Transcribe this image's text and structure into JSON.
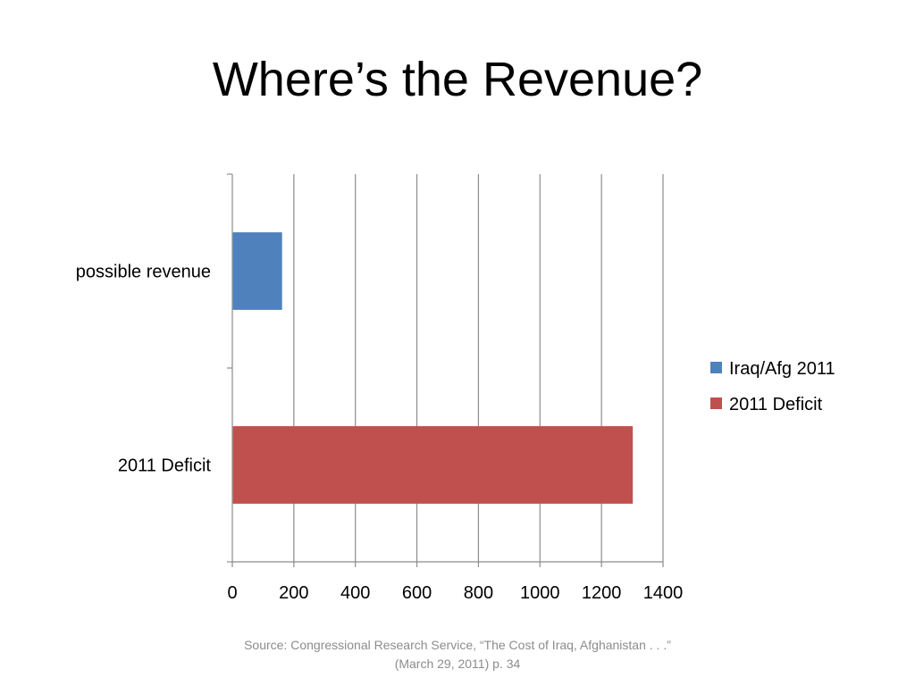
{
  "slide": {
    "title": "Where’s the Revenue?",
    "source_line1": "Source:  Congressional Research Service, “The Cost of Iraq, Afghanistan . . .”",
    "source_line2": "(March 29, 2011) p. 34"
  },
  "chart_data": {
    "type": "bar",
    "orientation": "horizontal",
    "categories": [
      "possible revenue",
      "2011 Deficit"
    ],
    "series": [
      {
        "name": "Iraq/Afg 2011",
        "color": "#4f81bd",
        "values": [
          160,
          null
        ]
      },
      {
        "name": "2011 Deficit",
        "color": "#c0504d",
        "values": [
          null,
          1300
        ]
      }
    ],
    "xlim": [
      0,
      1400
    ],
    "xticks": [
      0,
      200,
      400,
      600,
      800,
      1000,
      1200,
      1400
    ],
    "grid": true,
    "legend": "right"
  }
}
